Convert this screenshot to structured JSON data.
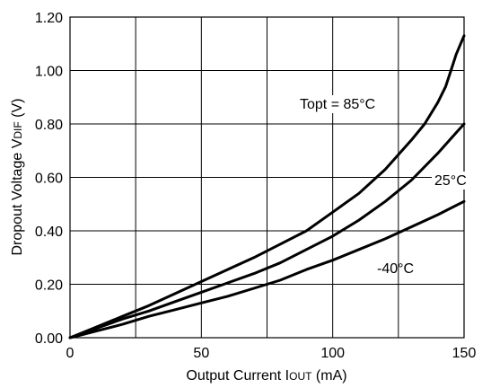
{
  "chart_data": {
    "type": "line",
    "title": "",
    "xlabel": {
      "main": "Output Current I",
      "sub": "OUT",
      "suffix": " (mA)"
    },
    "ylabel": {
      "main": "Dropout Voltage V",
      "sub": "DIF",
      "suffix": " (V)"
    },
    "xlim": [
      0,
      150
    ],
    "ylim": [
      0,
      1.2
    ],
    "x_ticks": [
      0,
      50,
      100,
      150
    ],
    "x_tick_labels": [
      "0",
      "50",
      "100",
      "150"
    ],
    "y_ticks": [
      0,
      0.2,
      0.4,
      0.6,
      0.8,
      1.0,
      1.2
    ],
    "y_tick_labels": [
      "0.00",
      "0.20",
      "0.40",
      "0.60",
      "0.80",
      "1.00",
      "1.20"
    ],
    "x_grid_step": 25,
    "y_grid_step": 0.2,
    "grid": true,
    "series": [
      {
        "name": "Topt = 85°C",
        "x": [
          0,
          5,
          10,
          20,
          30,
          40,
          50,
          60,
          70,
          80,
          90,
          100,
          110,
          120,
          130,
          135,
          140,
          143,
          145,
          147,
          150
        ],
        "y": [
          0,
          0.02,
          0.04,
          0.08,
          0.12,
          0.165,
          0.21,
          0.255,
          0.3,
          0.35,
          0.4,
          0.47,
          0.54,
          0.63,
          0.74,
          0.8,
          0.88,
          0.94,
          1.0,
          1.06,
          1.13
        ]
      },
      {
        "name": "25°C",
        "x": [
          0,
          5,
          10,
          20,
          30,
          40,
          50,
          60,
          70,
          80,
          90,
          100,
          110,
          120,
          130,
          140,
          150
        ],
        "y": [
          0,
          0.015,
          0.035,
          0.07,
          0.1,
          0.135,
          0.17,
          0.205,
          0.24,
          0.28,
          0.33,
          0.38,
          0.44,
          0.51,
          0.59,
          0.69,
          0.8
        ]
      },
      {
        "name": "-40°C",
        "x": [
          0,
          5,
          10,
          20,
          30,
          40,
          50,
          60,
          70,
          80,
          90,
          100,
          110,
          120,
          130,
          140,
          150
        ],
        "y": [
          0,
          0.012,
          0.025,
          0.05,
          0.08,
          0.105,
          0.13,
          0.155,
          0.185,
          0.215,
          0.255,
          0.29,
          0.33,
          0.37,
          0.415,
          0.46,
          0.51
        ]
      }
    ],
    "annotations": [
      "Topt = 85°C",
      "25°C",
      "-40°C"
    ]
  }
}
